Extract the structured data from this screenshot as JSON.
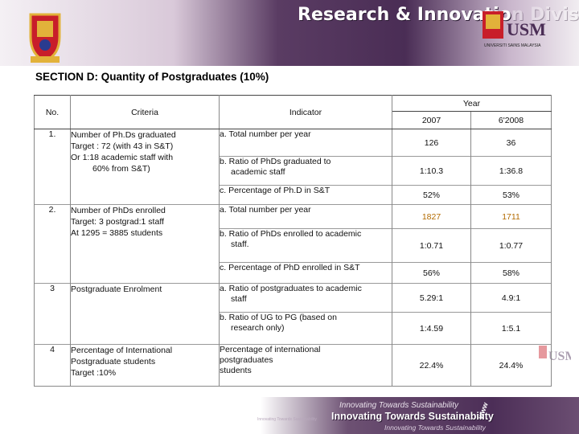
{
  "header": {
    "banner_text_visible": "Research & Innovatio",
    "banner_text_faded": "n Division",
    "usm_logo_text": "USM",
    "usm_caption": "UNIVERSITI SAINS MALAYSIA"
  },
  "section_title": "SECTION D:  Quantity of Postgraduates (10%)",
  "table": {
    "headers": {
      "no": "No.",
      "criteria": "Criteria",
      "indicator": "Indicator",
      "year": "Year",
      "y1": "2007",
      "y2": "6'2008"
    },
    "groups": [
      {
        "no": "1.",
        "criteria": [
          "Number of Ph.Ds graduated",
          "Target : 72 (with 43 in S&T)",
          "Or 1:18 academic staff with",
          "60% from S&T)"
        ],
        "rows": [
          {
            "indicator": [
              "a. Total number per year"
            ],
            "v1": "126",
            "v2": "36",
            "orange": false
          },
          {
            "indicator": [
              "b. Ratio of PhDs graduated to",
              "academic staff"
            ],
            "v1": "1:10.3",
            "v2": "1:36.8",
            "orange": false
          },
          {
            "indicator": [
              "c.  Percentage of Ph.D in S&T"
            ],
            "v1": "52%",
            "v2": "53%",
            "orange": false
          }
        ]
      },
      {
        "no": "2.",
        "criteria": [
          "Number of PhDs enrolled",
          "Target: 3 postgrad:1 staff",
          "At 1295 = 3885 students"
        ],
        "rows": [
          {
            "indicator": [
              "a. Total number per year"
            ],
            "v1": "1827",
            "v2": "1711",
            "orange": true
          },
          {
            "indicator": [
              "b. Ratio of PhDs enrolled to   academic",
              "staff."
            ],
            "v1": "1:0.71",
            "v2": "1:0.77",
            "orange": false
          },
          {
            "indicator": [
              "c.  Percentage of PhD enrolled in S&T"
            ],
            "v1": "56%",
            "v2": "58%",
            "orange": false
          }
        ]
      },
      {
        "no": "3",
        "criteria": [
          "Postgraduate Enrolment"
        ],
        "rows": [
          {
            "indicator": [
              "a. Ratio of postgraduates to academic",
              "staff"
            ],
            "v1": "5.29:1",
            "v2": "4.9:1",
            "orange": false
          },
          {
            "indicator": [
              "b. Ratio of UG to PG (based on",
              "research only)"
            ],
            "v1": "1:4.59",
            "v2": "1:5.1",
            "orange": false
          }
        ]
      },
      {
        "no": "4",
        "criteria": [
          "Percentage of International",
          "Postgraduate students",
          "Target :10%"
        ],
        "rows": [
          {
            "indicator": [
              "Percentage of  international",
              "postgraduates",
              "students"
            ],
            "v1": "22.4%",
            "v2": "24.4%",
            "orange": false
          }
        ]
      }
    ]
  },
  "footer": {
    "tagline_small": "Innovating Towards Sustainability",
    "tagline_main": "Innovating Towards Sustainability",
    "tagline_small2": "Innovating Towards Sustainability",
    "tagline_tiny": "Innovating Towards Sustainability",
    "www": "www"
  },
  "colors": {
    "banner_purple": "#4a2d55",
    "orange_value": "#b36b00"
  }
}
